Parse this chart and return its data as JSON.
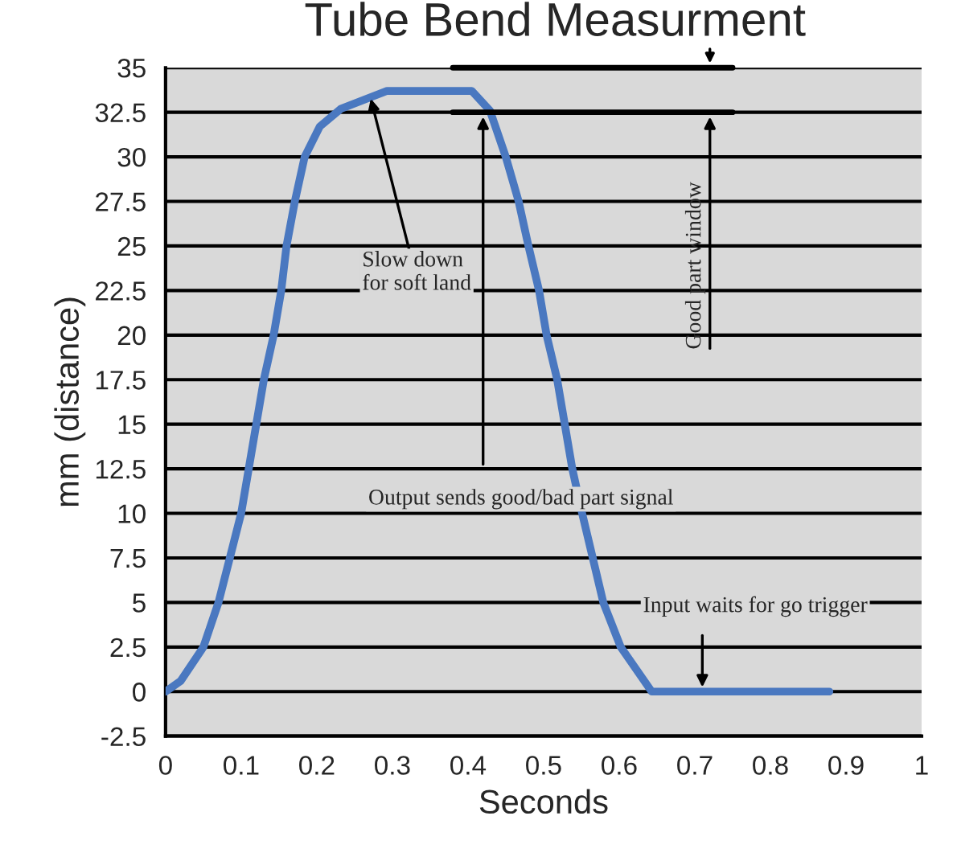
{
  "chart_data": {
    "type": "line",
    "title": "Tube Bend Measurment",
    "xlabel": "Seconds",
    "ylabel": "mm (distance)",
    "x": [
      0,
      0.02,
      0.05,
      0.07,
      0.085,
      0.1,
      0.11,
      0.12,
      0.13,
      0.143,
      0.153,
      0.16,
      0.171,
      0.184,
      0.204,
      0.232,
      0.293,
      0.405,
      0.429,
      0.45,
      0.467,
      0.48,
      0.494,
      0.504,
      0.518,
      0.528,
      0.538,
      0.551,
      0.565,
      0.579,
      0.602,
      0.643,
      0.878
    ],
    "series": [
      {
        "color": "#4a78c0",
        "values": [
          0,
          0.6,
          2.5,
          5,
          7.5,
          10,
          12.5,
          15,
          17.5,
          20,
          22.5,
          25,
          27.5,
          30,
          31.7,
          32.7,
          33.7,
          33.7,
          32.6,
          30,
          27.5,
          25,
          22.5,
          20,
          17.5,
          15,
          12.5,
          10,
          7.5,
          5,
          2.5,
          0,
          0
        ]
      }
    ],
    "xlim": [
      0,
      1
    ],
    "xticks": [
      0,
      0.1,
      0.2,
      0.3,
      0.4,
      0.5,
      0.6,
      0.7,
      0.8,
      0.9,
      1
    ],
    "ylim": [
      -2.5,
      35
    ],
    "yticks": [
      -2.5,
      0,
      2.5,
      5,
      7.5,
      10,
      12.5,
      15,
      17.5,
      20,
      22.5,
      25,
      27.5,
      30,
      32.5,
      35
    ],
    "grid": "y",
    "marker": "none",
    "line_style": "solid",
    "ref_lines": [
      {
        "axis": "y",
        "value": 35
      },
      {
        "axis": "y",
        "value": 32.5
      }
    ],
    "annotations": [
      {
        "text": "Good part window",
        "x": 0.72,
        "y": 32.5
      },
      {
        "text": "Slow down\nfor soft land",
        "x": 0.27,
        "y": 33.5
      },
      {
        "text": "Output sends good/bad part signal",
        "x": 0.42,
        "y": 32.5
      },
      {
        "text": "Input waits for go trigger",
        "x": 0.71,
        "y": 0
      }
    ]
  }
}
